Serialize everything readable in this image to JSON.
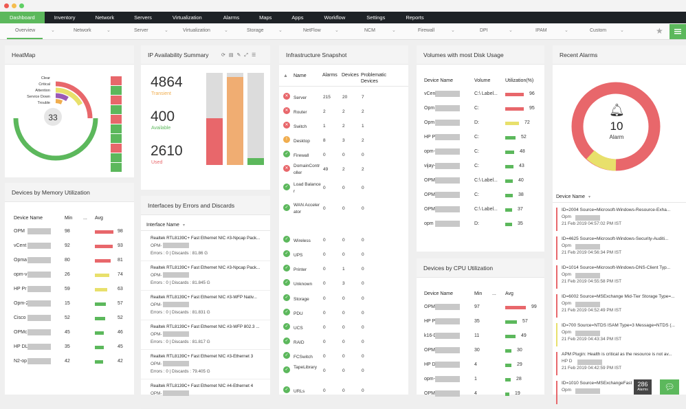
{
  "topnav": [
    "Dashboard",
    "Inventory",
    "Network",
    "Servers",
    "Virtualization",
    "Alarms",
    "Maps",
    "Apps",
    "Workflow",
    "Settings",
    "Reports"
  ],
  "subnav": [
    "Overview",
    "Network",
    "Server",
    "Virtualization",
    "Storage",
    "NetFlow",
    "NCM",
    "Firewall",
    "DPI",
    "IPAM",
    "Custom"
  ],
  "heatmap": {
    "title": "HeatMap",
    "center": "33",
    "legend": [
      "Clear",
      "Critical",
      "Attention",
      "Service Down",
      "Trouble"
    ]
  },
  "ip": {
    "title": "IP Availability Summary",
    "transient_value": "4864",
    "transient_label": "Transient",
    "available_value": "400",
    "available_label": "Available",
    "used_value": "2610",
    "used_label": "Used"
  },
  "infra": {
    "title": "Infrastructure Snapshot",
    "headers": [
      "Name",
      "Alarms",
      "Devices",
      "Problematic Devices"
    ],
    "rows": [
      {
        "name": "Server",
        "alarms": "215",
        "devices": "20",
        "prob": "7",
        "status": "critical"
      },
      {
        "name": "Router",
        "alarms": "2",
        "devices": "2",
        "prob": "2",
        "status": "critical"
      },
      {
        "name": "Switch",
        "alarms": "1",
        "devices": "2",
        "prob": "1",
        "status": "critical"
      },
      {
        "name": "Desktop",
        "alarms": "8",
        "devices": "3",
        "prob": "2",
        "status": "attention"
      },
      {
        "name": "Firewall",
        "alarms": "0",
        "devices": "0",
        "prob": "0",
        "status": "clear"
      },
      {
        "name": "DomainController",
        "alarms": "49",
        "devices": "2",
        "prob": "2",
        "status": "critical"
      },
      {
        "name": "Load Balancer",
        "alarms": "0",
        "devices": "0",
        "prob": "0",
        "status": "clear"
      },
      {
        "name": "WAN Accelerator",
        "alarms": "0",
        "devices": "0",
        "prob": "0",
        "status": "clear"
      },
      {
        "name": "Wireless",
        "alarms": "0",
        "devices": "0",
        "prob": "0",
        "status": "clear"
      },
      {
        "name": "UPS",
        "alarms": "0",
        "devices": "0",
        "prob": "0",
        "status": "clear"
      },
      {
        "name": "Printer",
        "alarms": "0",
        "devices": "1",
        "prob": "0",
        "status": "clear"
      },
      {
        "name": "Unknown",
        "alarms": "0",
        "devices": "3",
        "prob": "0",
        "status": "clear"
      },
      {
        "name": "Storage",
        "alarms": "0",
        "devices": "0",
        "prob": "0",
        "status": "clear"
      },
      {
        "name": "PDU",
        "alarms": "0",
        "devices": "0",
        "prob": "0",
        "status": "clear"
      },
      {
        "name": "UCS",
        "alarms": "0",
        "devices": "0",
        "prob": "0",
        "status": "clear"
      },
      {
        "name": "RAID",
        "alarms": "0",
        "devices": "0",
        "prob": "0",
        "status": "clear"
      },
      {
        "name": "FCSwitch",
        "alarms": "0",
        "devices": "0",
        "prob": "0",
        "status": "clear"
      },
      {
        "name": "TapeLibrary",
        "alarms": "0",
        "devices": "0",
        "prob": "0",
        "status": "clear"
      },
      {
        "name": "URLs",
        "alarms": "0",
        "devices": "0",
        "prob": "0",
        "status": "clear"
      }
    ]
  },
  "disk": {
    "title": "Volumes with most Disk Usage",
    "headers": [
      "Device Name",
      "Volume",
      "Utilization(%)"
    ],
    "rows": [
      {
        "device": "vCen",
        "volume": "C:\\ Label...",
        "util": "96",
        "pct": 0.96,
        "color": "#e8676b"
      },
      {
        "device": "Opm",
        "volume": "C:",
        "util": "95",
        "pct": 0.95,
        "color": "#e8676b"
      },
      {
        "device": "Opm",
        "volume": "D:",
        "util": "72",
        "pct": 0.72,
        "color": "#e8e06b"
      },
      {
        "device": "HP Pi",
        "volume": "C:",
        "util": "52",
        "pct": 0.52,
        "color": "#5cb85c"
      },
      {
        "device": "opm-",
        "volume": "C:",
        "util": "48",
        "pct": 0.48,
        "color": "#5cb85c"
      },
      {
        "device": "vijay-",
        "volume": "C:",
        "util": "43",
        "pct": 0.43,
        "color": "#5cb85c"
      },
      {
        "device": "OPM",
        "volume": "C:\\ Label...",
        "util": "40",
        "pct": 0.4,
        "color": "#5cb85c"
      },
      {
        "device": "OPM",
        "volume": "C:",
        "util": "38",
        "pct": 0.38,
        "color": "#5cb85c"
      },
      {
        "device": "OPM",
        "volume": "C:\\ Label...",
        "util": "37",
        "pct": 0.37,
        "color": "#5cb85c"
      },
      {
        "device": "opm",
        "volume": "D:",
        "util": "35",
        "pct": 0.35,
        "color": "#5cb85c"
      }
    ]
  },
  "memory": {
    "title": "Devices by Memory Utilization",
    "headers": [
      "Device Name",
      "Min",
      "...",
      "Avg"
    ],
    "rows": [
      {
        "device": "OPM",
        "min": "98",
        "avg": "98",
        "pct": 0.98,
        "color": "#e8676b"
      },
      {
        "device": "vCent",
        "min": "92",
        "avg": "93",
        "pct": 0.93,
        "color": "#e8676b"
      },
      {
        "device": "Opma",
        "min": "80",
        "avg": "81",
        "pct": 0.81,
        "color": "#e8676b"
      },
      {
        "device": "opm-v",
        "min": "26",
        "avg": "74",
        "pct": 0.74,
        "color": "#e8e06b"
      },
      {
        "device": "HP Pr",
        "min": "59",
        "avg": "63",
        "pct": 0.63,
        "color": "#e8e06b"
      },
      {
        "device": "Opm-2",
        "min": "15",
        "avg": "57",
        "pct": 0.57,
        "color": "#5cb85c"
      },
      {
        "device": "Cisco",
        "min": "52",
        "avg": "52",
        "pct": 0.52,
        "color": "#5cb85c"
      },
      {
        "device": "OPMc",
        "min": "45",
        "avg": "46",
        "pct": 0.46,
        "color": "#5cb85c"
      },
      {
        "device": "HP DL",
        "min": "35",
        "avg": "45",
        "pct": 0.45,
        "color": "#5cb85c"
      },
      {
        "device": "N2-op",
        "min": "42",
        "avg": "42",
        "pct": 0.42,
        "color": "#5cb85c"
      }
    ]
  },
  "interfaces": {
    "title": "Interfaces by Errors and Discards",
    "column": "Interface Name",
    "rows": [
      {
        "name": "Realtek RTL8139C+ Fast Ethernet NIC #3-Npcap Pack...",
        "dev": "OPM-",
        "errors": "Errors : 0 | Discards : 81.86 G"
      },
      {
        "name": "Realtek RTL8139C+ Fast Ethernet NIC #3-Npcap Pack...",
        "dev": "OPM-",
        "errors": "Errors : 0 | Discards : 81.845 G"
      },
      {
        "name": "Realtek RTL8139C+ Fast Ethernet NIC #3-WFP Nativ...",
        "dev": "OPM-",
        "errors": "Errors : 0 | Discards : 81.831 G"
      },
      {
        "name": "Realtek RTL8139C+ Fast Ethernet NIC #3-WFP 802.3 ...",
        "dev": "OPM-",
        "errors": "Errors : 0 | Discards : 81.817 G"
      },
      {
        "name": "Realtek RTL8139C+ Fast Ethernet NIC #3-Ethernet 3",
        "dev": "OPM-",
        "errors": "Errors : 0 | Discards : 79.405 G"
      },
      {
        "name": "Realtek RTL8139C+ Fast Ethernet NIC #4-Ethernet 4",
        "dev": "OPM-",
        "errors": ""
      }
    ]
  },
  "cpu": {
    "title": "Devices by CPU Utilization",
    "headers": [
      "Device Name",
      "Min",
      "...",
      "Avg"
    ],
    "rows": [
      {
        "device": "OPM",
        "min": "97",
        "avg": "99",
        "pct": 0.99,
        "color": "#e8676b"
      },
      {
        "device": "HP Pr",
        "min": "35",
        "avg": "57",
        "pct": 0.57,
        "color": "#5cb85c"
      },
      {
        "device": "k16-D",
        "min": "11",
        "avg": "49",
        "pct": 0.49,
        "color": "#5cb85c"
      },
      {
        "device": "OPM-",
        "min": "30",
        "avg": "30",
        "pct": 0.3,
        "color": "#5cb85c"
      },
      {
        "device": "HP D",
        "min": "4",
        "avg": "29",
        "pct": 0.29,
        "color": "#5cb85c"
      },
      {
        "device": "opm-",
        "min": "1",
        "avg": "28",
        "pct": 0.28,
        "color": "#5cb85c"
      },
      {
        "device": "OPM",
        "min": "4",
        "avg": "19",
        "pct": 0.19,
        "color": "#5cb85c"
      }
    ]
  },
  "alarms": {
    "title": "Recent Alarms",
    "count": "10",
    "count_label": "Alarm",
    "column": "Device Name",
    "rows": [
      {
        "msg": "ID=2004 Source=Microsoft-Windows-Resource-Exha...",
        "dev": "Opm",
        "time": "21 Feb 2019 04:57:02 PM IST",
        "color": "#e8676b"
      },
      {
        "msg": "ID=4625 Source=Microsoft-Windows-Security-Auditi...",
        "dev": "Opm",
        "time": "21 Feb 2019 04:56:34 PM IST",
        "color": "#e8676b"
      },
      {
        "msg": "ID=1014 Source=Microsoft-Windows-DNS-Client Typ...",
        "dev": "Opm",
        "time": "21 Feb 2019 04:55:58 PM IST",
        "color": "#e8676b"
      },
      {
        "msg": "ID=6002 Source=MSExchange Mid-Tier Storage Type=...",
        "dev": "Opm",
        "time": "21 Feb 2019 04:52:49 PM IST",
        "color": "#e8676b"
      },
      {
        "msg": "ID=700 Source=NTDS ISAM Type=3 Message=NTDS (...",
        "dev": "Opm",
        "time": "21 Feb 2019 04:43:34 PM IST",
        "color": "#e8e06b"
      },
      {
        "msg": "APM Plugin: Health is critical as the resource is not av...",
        "dev": "HP D",
        "time": "21 Feb 2019 04:42:59 PM IST",
        "color": "#e8676b"
      },
      {
        "msg": "ID=1010 Source=MSExchangeFast",
        "dev": "Opm",
        "time": "",
        "color": "#e8676b"
      }
    ]
  },
  "footer": {
    "badge_count": "286",
    "badge_label": "Alarms"
  },
  "colors": {
    "critical": "#e8676b",
    "attention": "#f0ad4e",
    "clear": "#5cb85c",
    "warning": "#e8e06b",
    "accent": "#5cb85c"
  }
}
